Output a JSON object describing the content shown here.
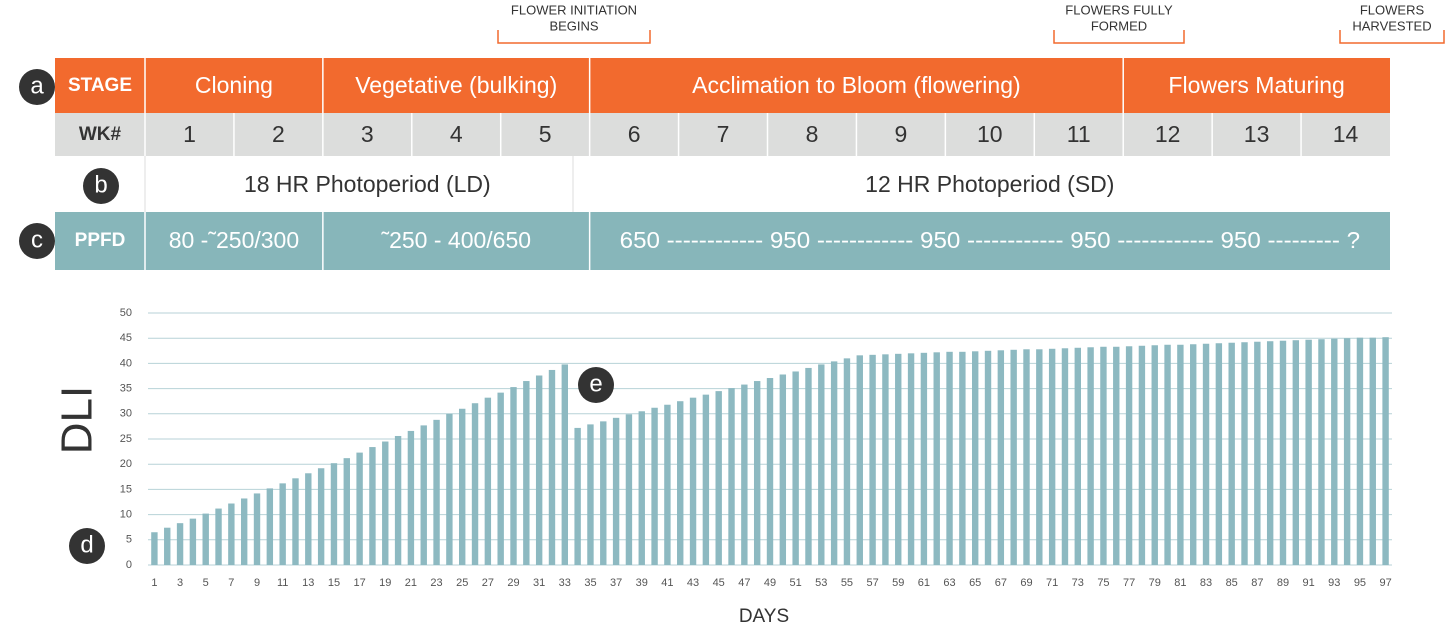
{
  "annotations": [
    {
      "lines": [
        "FLOWER INITIATION",
        "BEGINS"
      ]
    },
    {
      "lines": [
        "FLOWERS FULLY",
        "FORMED"
      ]
    },
    {
      "lines": [
        "FLOWERS",
        "HARVESTED"
      ]
    }
  ],
  "markers": [
    "a",
    "b",
    "c",
    "d",
    "e"
  ],
  "table": {
    "stage_label": "STAGE",
    "stages": [
      "Cloning",
      "Vegetative (bulking)",
      "Acclimation to Bloom (flowering)",
      "Flowers Maturing"
    ],
    "week_label": "WK#",
    "weeks": [
      1,
      2,
      3,
      4,
      5,
      6,
      7,
      8,
      9,
      10,
      11,
      12,
      13,
      14
    ],
    "photoperiods": [
      "18 HR Photoperiod (LD)",
      "12 HR Photoperiod (SD)"
    ],
    "ppfd_label": "PPFD",
    "ppfd": [
      "80 -˜250/300",
      "˜250 - 400/650",
      "650 ------------ 950 ------------ 950 ------------ 950 ------------ 950 --------- ?"
    ]
  },
  "chart_data": {
    "type": "bar",
    "ylabel": "DLI",
    "xlabel": "DAYS",
    "categories": [
      1,
      null,
      3,
      null,
      5,
      null,
      7,
      null,
      9,
      null,
      11,
      null,
      13,
      null,
      15,
      null,
      17,
      null,
      19,
      null,
      21,
      null,
      23,
      null,
      25,
      null,
      27,
      null,
      29,
      null,
      31,
      null,
      33,
      null,
      35,
      null,
      37,
      null,
      39,
      null,
      41,
      null,
      43,
      null,
      45,
      null,
      47,
      null,
      49,
      null,
      51,
      null,
      53,
      null,
      55,
      null,
      57,
      null,
      59,
      null,
      61,
      null,
      63,
      null,
      65,
      null,
      67,
      null,
      69,
      null,
      71,
      null,
      73,
      null,
      75,
      null,
      77,
      null,
      79,
      null,
      81,
      null,
      83,
      null,
      85,
      null,
      87,
      null,
      89,
      null,
      91,
      null,
      93,
      null,
      95,
      null,
      97
    ],
    "values": [
      6.5,
      7.4,
      8.3,
      9.2,
      10.2,
      11.2,
      12.2,
      13.2,
      14.2,
      15.2,
      16.2,
      17.2,
      18.2,
      19.2,
      20.2,
      21.2,
      22.3,
      23.4,
      24.5,
      25.6,
      26.6,
      27.7,
      28.8,
      30,
      31,
      32.1,
      33.2,
      34.2,
      35.3,
      36.5,
      37.6,
      38.7,
      39.8,
      27.2,
      27.9,
      28.5,
      29.2,
      29.9,
      30.5,
      31.2,
      31.8,
      32.5,
      33.2,
      33.8,
      34.5,
      35.1,
      35.8,
      36.5,
      37.1,
      37.8,
      38.4,
      39.1,
      39.8,
      40.4,
      41.0,
      41.6,
      41.7,
      41.8,
      41.9,
      42.0,
      42.1,
      42.2,
      42.3,
      42.3,
      42.4,
      42.5,
      42.6,
      42.7,
      42.8,
      42.8,
      42.9,
      43.0,
      43.1,
      43.2,
      43.3,
      43.3,
      43.4,
      43.5,
      43.6,
      43.7,
      43.7,
      43.8,
      43.9,
      44.0,
      44.1,
      44.2,
      44.3,
      44.4,
      44.5,
      44.6,
      44.7,
      44.8,
      44.9,
      45.0,
      45.1,
      45.1,
      45.2
    ],
    "color": "#8db9c1",
    "ylim": [
      0,
      50
    ],
    "yticks": [
      0,
      5,
      10,
      15,
      20,
      25,
      30,
      35,
      40,
      45,
      50
    ],
    "grid": true
  }
}
